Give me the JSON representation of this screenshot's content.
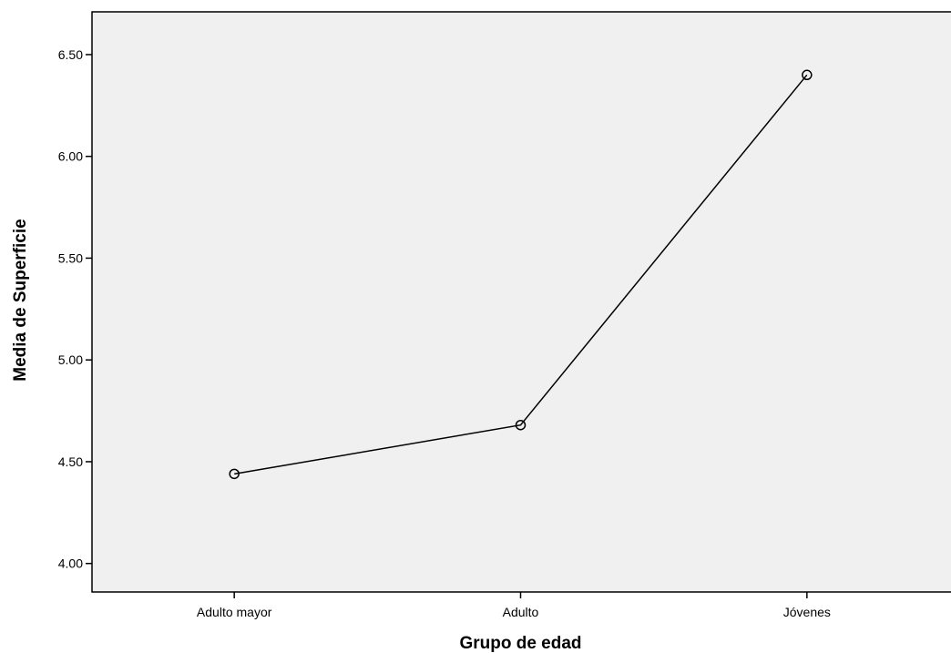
{
  "chart_data": {
    "type": "line",
    "title": "",
    "xlabel": "Grupo de edad",
    "ylabel": "Media de Superficie",
    "categories": [
      "Adulto mayor",
      "Adulto",
      "Jóvenes"
    ],
    "values": [
      4.44,
      4.68,
      6.4
    ],
    "ylim": [
      3.86,
      6.71
    ],
    "yticks": [
      "4.00",
      "4.50",
      "5.00",
      "5.50",
      "6.00",
      "6.50"
    ],
    "marker": "open-circle",
    "grid": false,
    "legend": "none",
    "colors": {
      "plot_background": "#f0f0f0",
      "line": "#000000",
      "marker": "#000000"
    }
  }
}
